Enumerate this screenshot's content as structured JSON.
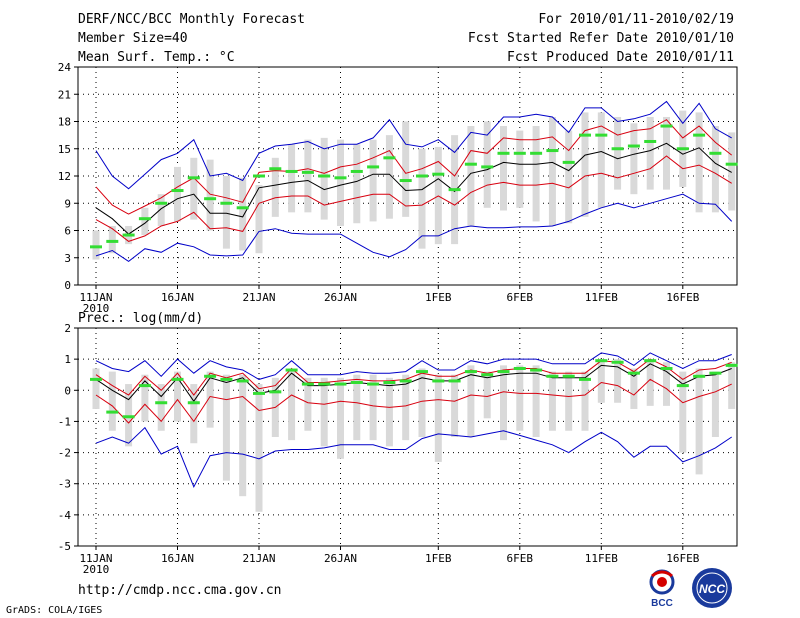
{
  "header": {
    "title": "DERF/NCC/BCC Monthly Forecast",
    "member_size": "Member Size=40",
    "variable_top": "Mean Surf. Temp.: °C",
    "period": "For 2010/01/11-2010/02/19",
    "refer_date": "Fcst Started Refer Date 2010/01/10",
    "produced_date": "Fcst Produced Date 2010/01/11"
  },
  "variable_bottom": "Prec.: log(mm/d)",
  "footer": {
    "url": "http://cmdp.ncc.cma.gov.cn",
    "grads": "GrADS: COLA/IGES",
    "logo_bcc": "BCC",
    "logo_ncc": "NCC"
  },
  "colors": {
    "mean": "#000000",
    "spread": "#d8000f",
    "extreme": "#0000c8",
    "box": "#d9d9d9",
    "median": "#33dd33",
    "grid": "#000000"
  },
  "chart_data": [
    {
      "type": "ensemble-boxplot",
      "title": "Mean Surf. Temp.: °C",
      "ylim": [
        0,
        24
      ],
      "yticks": [
        "0",
        "3",
        "6",
        "9",
        "12",
        "15",
        "18",
        "21",
        "24"
      ],
      "xticks": [
        {
          "day": 0,
          "label": "11JAN"
        },
        {
          "day": 5,
          "label": "16JAN"
        },
        {
          "day": 10,
          "label": "21JAN"
        },
        {
          "day": 15,
          "label": "26JAN"
        },
        {
          "day": 21,
          "label": "1FEB"
        },
        {
          "day": 26,
          "label": "6FEB"
        },
        {
          "day": 31,
          "label": "11FEB"
        },
        {
          "day": 36,
          "label": "16FEB"
        }
      ],
      "year_label": "2010",
      "series": [
        {
          "name": "box_low",
          "values": [
            2.8,
            3.5,
            4.5,
            5.5,
            6.5,
            7.0,
            7.2,
            6.0,
            4.0,
            3.8,
            3.5,
            7.5,
            8.0,
            8.0,
            7.2,
            6.5,
            6.8,
            7.0,
            7.3,
            7.5,
            4.0,
            4.5,
            4.5,
            6.5,
            8.5,
            8.2,
            8.5,
            7.0,
            6.5,
            6.8,
            7.5,
            8.5,
            10.5,
            10.0,
            10.5,
            10.5,
            10.8,
            8.0,
            8.0,
            8.2
          ]
        },
        {
          "name": "box_high",
          "values": [
            6.0,
            6.5,
            6.5,
            8.5,
            10.0,
            13.0,
            14.0,
            13.8,
            12.0,
            11.8,
            11.0,
            14.0,
            15.5,
            16.0,
            16.2,
            16.0,
            15.5,
            16.0,
            16.5,
            18.0,
            15.0,
            15.2,
            16.5,
            17.5,
            18.0,
            17.5,
            17.0,
            17.5,
            18.5,
            17.0,
            19.0,
            19.0,
            18.5,
            17.8,
            18.5,
            18.5,
            19.2,
            19.0,
            17.5,
            16.8
          ]
        },
        {
          "name": "median",
          "values": [
            4.2,
            4.8,
            5.5,
            7.3,
            9.0,
            10.4,
            11.8,
            9.5,
            9.0,
            8.5,
            12.0,
            12.8,
            12.5,
            12.4,
            12.0,
            11.8,
            12.5,
            13.0,
            14.0,
            11.5,
            12.0,
            12.2,
            10.5,
            13.3,
            13.0,
            14.5,
            14.5,
            14.5,
            14.8,
            13.5,
            16.5,
            16.5,
            15.0,
            15.3,
            15.8,
            17.5,
            15.0,
            16.5,
            14.5,
            13.3
          ]
        },
        {
          "name": "mean",
          "values": [
            8.5,
            7.3,
            5.6,
            6.8,
            8.4,
            9.5,
            10.0,
            7.9,
            7.9,
            7.5,
            10.7,
            11.0,
            11.3,
            11.5,
            10.5,
            11.0,
            11.4,
            12.2,
            12.2,
            10.4,
            10.5,
            11.7,
            10.3,
            12.3,
            12.7,
            13.5,
            13.3,
            13.3,
            13.5,
            12.6,
            14.3,
            14.7,
            13.9,
            14.4,
            14.8,
            15.6,
            14.4,
            15.1,
            13.4,
            12.4
          ]
        },
        {
          "name": "spread_high",
          "values": [
            10.8,
            8.8,
            7.8,
            8.7,
            9.6,
            10.8,
            11.8,
            10.0,
            9.6,
            9.1,
            12.4,
            12.6,
            12.5,
            12.8,
            12.3,
            13.0,
            13.3,
            14.0,
            14.8,
            12.3,
            12.8,
            13.6,
            12.0,
            14.8,
            14.5,
            16.2,
            16.0,
            16.0,
            16.3,
            14.8,
            17.0,
            17.5,
            16.5,
            17.0,
            17.2,
            18.2,
            16.2,
            17.5,
            15.7,
            14.3
          ]
        },
        {
          "name": "spread_low",
          "values": [
            7.2,
            6.2,
            4.8,
            5.4,
            6.5,
            7.0,
            8.0,
            6.2,
            6.3,
            5.9,
            9.0,
            9.6,
            9.8,
            9.8,
            8.8,
            9.2,
            9.6,
            10.0,
            10.0,
            8.7,
            8.8,
            9.8,
            8.8,
            10.2,
            11.0,
            11.3,
            11.0,
            11.0,
            11.2,
            10.7,
            12.0,
            12.3,
            11.8,
            12.3,
            12.8,
            14.2,
            12.8,
            13.2,
            12.3,
            11.2
          ]
        },
        {
          "name": "max",
          "values": [
            14.8,
            12.0,
            10.6,
            12.2,
            13.8,
            14.5,
            16.0,
            12.0,
            12.3,
            11.5,
            14.5,
            15.3,
            15.5,
            15.8,
            15.0,
            15.5,
            15.5,
            16.2,
            18.2,
            15.5,
            15.2,
            16.0,
            14.6,
            16.8,
            16.5,
            18.5,
            18.5,
            18.8,
            18.5,
            16.8,
            19.5,
            19.5,
            18.0,
            18.3,
            18.8,
            20.2,
            17.8,
            20.0,
            17.2,
            16.2
          ]
        },
        {
          "name": "min",
          "values": [
            3.2,
            3.8,
            2.6,
            4.0,
            3.6,
            4.6,
            4.2,
            3.3,
            3.2,
            3.3,
            5.9,
            6.2,
            5.7,
            5.6,
            5.6,
            5.6,
            4.6,
            3.6,
            3.1,
            3.9,
            5.4,
            5.4,
            6.2,
            6.5,
            6.3,
            6.3,
            6.4,
            6.4,
            6.5,
            7.0,
            7.8,
            8.5,
            9.0,
            8.5,
            9.0,
            9.5,
            10.0,
            9.0,
            8.9,
            7.0
          ]
        }
      ]
    },
    {
      "type": "ensemble-boxplot",
      "title": "Prec.: log(mm/d)",
      "ylim": [
        -5,
        2
      ],
      "yticks": [
        "-5",
        "-4",
        "-3",
        "-2",
        "-1",
        "0",
        "1",
        "2"
      ],
      "xticks": [
        {
          "day": 0,
          "label": "11JAN"
        },
        {
          "day": 5,
          "label": "16JAN"
        },
        {
          "day": 10,
          "label": "21JAN"
        },
        {
          "day": 15,
          "label": "26JAN"
        },
        {
          "day": 21,
          "label": "1FEB"
        },
        {
          "day": 26,
          "label": "6FEB"
        },
        {
          "day": 31,
          "label": "11FEB"
        },
        {
          "day": 36,
          "label": "16FEB"
        }
      ],
      "year_label": "2010",
      "series": [
        {
          "name": "box_low",
          "values": [
            -0.6,
            -1.3,
            -1.8,
            -1.0,
            -1.3,
            -1.0,
            -1.7,
            -1.2,
            -2.9,
            -3.4,
            -3.9,
            -1.5,
            -1.6,
            -1.3,
            -1.8,
            -2.2,
            -1.6,
            -1.6,
            -1.8,
            -1.6,
            -1.5,
            -2.3,
            -1.5,
            -1.5,
            -0.9,
            -1.6,
            -1.3,
            -1.5,
            -1.3,
            -1.3,
            -1.3,
            -0.4,
            -0.4,
            -0.6,
            -0.5,
            -0.5,
            -2.0,
            -2.7,
            -1.5,
            -0.6
          ]
        },
        {
          "name": "box_high",
          "values": [
            0.7,
            0.6,
            0.2,
            0.5,
            0.2,
            0.6,
            0.2,
            0.6,
            0.5,
            0.5,
            0.2,
            0.4,
            0.7,
            0.4,
            0.4,
            0.4,
            0.5,
            0.5,
            0.4,
            0.5,
            0.7,
            0.5,
            0.5,
            0.8,
            0.6,
            0.8,
            0.8,
            0.8,
            0.6,
            0.6,
            0.6,
            1.0,
            1.0,
            0.7,
            1.0,
            0.9,
            0.6,
            0.7,
            0.6,
            0.9
          ]
        },
        {
          "name": "median",
          "values": [
            0.35,
            -0.7,
            -0.85,
            0.15,
            -0.4,
            0.35,
            -0.4,
            0.45,
            0.35,
            0.3,
            -0.1,
            -0.05,
            0.65,
            0.2,
            0.2,
            0.2,
            0.25,
            0.2,
            0.25,
            0.3,
            0.6,
            0.3,
            0.3,
            0.6,
            0.5,
            0.6,
            0.7,
            0.65,
            0.45,
            0.45,
            0.35,
            0.95,
            0.9,
            0.55,
            0.95,
            0.7,
            0.15,
            0.45,
            0.55,
            0.8
          ]
        },
        {
          "name": "mean",
          "values": [
            0.35,
            0.0,
            -0.3,
            0.3,
            -0.2,
            0.4,
            -0.35,
            0.4,
            0.25,
            0.4,
            -0.1,
            0.0,
            0.55,
            0.15,
            0.15,
            0.2,
            0.25,
            0.2,
            0.15,
            0.2,
            0.4,
            0.3,
            0.3,
            0.5,
            0.4,
            0.5,
            0.55,
            0.55,
            0.4,
            0.4,
            0.4,
            0.8,
            0.75,
            0.45,
            0.85,
            0.6,
            0.2,
            0.45,
            0.5,
            0.7
          ]
        },
        {
          "name": "spread_high",
          "values": [
            0.5,
            0.15,
            -0.15,
            0.45,
            0.0,
            0.55,
            -0.15,
            0.55,
            0.4,
            0.55,
            0.05,
            0.15,
            0.7,
            0.25,
            0.25,
            0.3,
            0.35,
            0.3,
            0.3,
            0.35,
            0.55,
            0.45,
            0.45,
            0.65,
            0.55,
            0.65,
            0.7,
            0.7,
            0.55,
            0.55,
            0.55,
            0.95,
            0.9,
            0.6,
            1.0,
            0.75,
            0.35,
            0.65,
            0.7,
            0.9
          ]
        },
        {
          "name": "spread_low",
          "values": [
            -0.15,
            -0.5,
            -1.05,
            -0.45,
            -1.0,
            -0.3,
            -1.0,
            -0.2,
            -0.3,
            -0.2,
            -0.65,
            -0.55,
            -0.15,
            -0.4,
            -0.45,
            -0.35,
            -0.4,
            -0.5,
            -0.55,
            -0.5,
            -0.35,
            -0.3,
            -0.35,
            -0.15,
            -0.2,
            -0.05,
            -0.1,
            -0.1,
            -0.15,
            -0.2,
            -0.15,
            0.25,
            0.15,
            -0.15,
            0.35,
            0.05,
            -0.4,
            -0.2,
            -0.05,
            0.2
          ]
        },
        {
          "name": "max",
          "values": [
            0.95,
            0.7,
            0.6,
            0.95,
            0.45,
            1.0,
            0.55,
            0.95,
            0.75,
            0.65,
            0.35,
            0.5,
            0.95,
            0.5,
            0.5,
            0.5,
            0.6,
            0.55,
            0.55,
            0.6,
            0.95,
            0.65,
            0.65,
            0.95,
            0.85,
            1.0,
            1.0,
            1.0,
            0.85,
            0.85,
            0.85,
            1.2,
            1.1,
            0.8,
            1.2,
            0.95,
            0.7,
            0.95,
            0.95,
            1.15
          ]
        },
        {
          "name": "min",
          "values": [
            -1.7,
            -1.5,
            -1.7,
            -1.2,
            -2.05,
            -1.8,
            -3.1,
            -2.1,
            -2.0,
            -2.05,
            -2.2,
            -1.95,
            -1.9,
            -1.9,
            -1.85,
            -1.75,
            -1.75,
            -1.75,
            -1.9,
            -1.9,
            -1.55,
            -1.4,
            -1.45,
            -1.5,
            -1.4,
            -1.3,
            -1.45,
            -1.6,
            -1.75,
            -2.0,
            -1.65,
            -1.35,
            -1.65,
            -2.15,
            -1.8,
            -1.8,
            -2.3,
            -2.1,
            -1.85,
            -1.5
          ]
        }
      ]
    }
  ]
}
